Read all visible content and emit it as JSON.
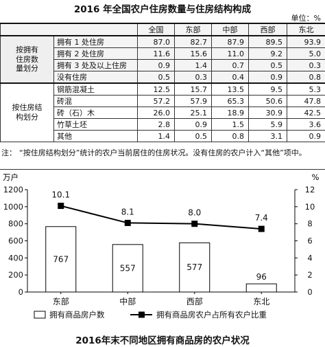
{
  "table": {
    "title": "2016 年全国农户住房数量与住房结构构成",
    "unit": "单位：%",
    "columns": [
      "",
      "",
      "全国",
      "东部",
      "中部",
      "西部",
      "东北"
    ],
    "groups": [
      {
        "label": "按拥有住房数量划分",
        "label_lines": [
          "按拥有",
          "住房数",
          "量划分"
        ],
        "rows": [
          {
            "item": "拥有 1 处住房",
            "values": [
              "87.0",
              "82.7",
              "87.9",
              "89.5",
              "93.9"
            ]
          },
          {
            "item": "拥有 2 处住房",
            "values": [
              "11.6",
              "15.6",
              "11.0",
              "9.2",
              "5.0"
            ]
          },
          {
            "item": "拥有 3 处及以上住房",
            "values": [
              "0.9",
              "1.4",
              "0.7",
              "0.5",
              "0.3"
            ]
          },
          {
            "item": "没有住房",
            "values": [
              "0.5",
              "0.3",
              "0.4",
              "0.9",
              "0.8"
            ]
          }
        ]
      },
      {
        "label": "按住房结构划分",
        "label_lines": [
          "按住房结",
          "构划分"
        ],
        "rows": [
          {
            "item": "钢筋混凝土",
            "values": [
              "12.5",
              "15.7",
              "13.5",
              "9.5",
              "5.3"
            ]
          },
          {
            "item": "砖混",
            "values": [
              "57.2",
              "57.9",
              "65.3",
              "50.6",
              "47.8"
            ]
          },
          {
            "item": "砖（石）木",
            "values": [
              "26.0",
              "25.1",
              "18.9",
              "30.9",
              "42.5"
            ]
          },
          {
            "item": "竹草土坯",
            "values": [
              "2.8",
              "0.9",
              "1.5",
              "5.9",
              "3.6"
            ]
          },
          {
            "item": "其他",
            "values": [
              "1.4",
              "0.5",
              "0.8",
              "3.1",
              "0.9"
            ]
          }
        ]
      }
    ],
    "note_lead": "注：",
    "note": "“按住房结构划分”统计的农户当前居住的住房状况。没有住房的农户计入“其他”项中。"
  },
  "chart_data": {
    "type": "bar",
    "title": "2016年末不同地区拥有商品房的农户状况",
    "categories": [
      "东部",
      "中部",
      "西部",
      "东北"
    ],
    "ylabel_left": "万户",
    "ylabel_right": "%",
    "ylim_left": [
      0,
      1200
    ],
    "yticks_left": [
      0,
      200,
      400,
      600,
      800,
      1000,
      1200
    ],
    "ylim_right": [
      0,
      12
    ],
    "yticks_right": [
      0,
      2,
      4,
      6,
      8,
      10,
      12
    ],
    "series": [
      {
        "name": "拥有商品房户数",
        "kind": "bar",
        "axis": "left",
        "values": [
          767,
          557,
          577,
          96
        ]
      },
      {
        "name": "拥有商品房农户占所有农户比重",
        "kind": "line",
        "axis": "right",
        "values": [
          10.1,
          8.1,
          8.0,
          7.4
        ]
      }
    ],
    "bar_labels": [
      "767",
      "557",
      "577",
      "96"
    ],
    "line_labels": [
      "10.1",
      "8.1",
      "8.0",
      "7.4"
    ],
    "grid": false,
    "legend_position": "bottom",
    "colors": {
      "bar_fill": "#ffffff",
      "bar_stroke": "#000000",
      "line": "#000000"
    }
  }
}
